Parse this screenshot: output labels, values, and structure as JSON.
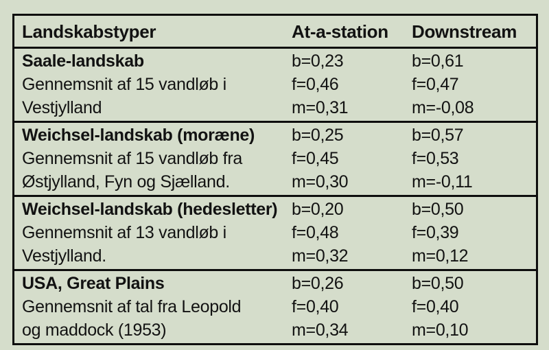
{
  "page": {
    "background_color": "#d5ddcb",
    "border_color": "#0d0d0d",
    "text_color": "#121212"
  },
  "table": {
    "headers": [
      "Landskabstyper",
      "At-a-station",
      "Downstream"
    ],
    "groups": [
      {
        "rows": [
          [
            "Saale-landskab",
            "b=0,23",
            "b=0,61"
          ],
          [
            "Gennemsnit af 15 vandløb i",
            "f=0,46",
            "f=0,47"
          ],
          [
            "Vestjylland",
            "m=0,31",
            "m=-0,08"
          ]
        ]
      },
      {
        "rows": [
          [
            "Weichsel-landskab (moræne)",
            "b=0,25",
            "b=0,57"
          ],
          [
            "Gennemsnit af 15 vandløb fra",
            "f=0,45",
            "f=0,53"
          ],
          [
            "Østjylland, Fyn og Sjælland.",
            "m=0,30",
            "m=-0,11"
          ]
        ]
      },
      {
        "rows": [
          [
            "Weichsel-landskab (hedesletter)",
            "b=0,20",
            "b=0,50"
          ],
          [
            "Gennemsnit af 13 vandløb i",
            "f=0,48",
            "f=0,39"
          ],
          [
            "Vestjylland.",
            "m=0,32",
            "m=0,12"
          ]
        ]
      },
      {
        "rows": [
          [
            "USA, Great Plains",
            "b=0,26",
            "b=0,50"
          ],
          [
            "Gennemsnit af tal fra Leopold",
            "f=0,40",
            "f=0,40"
          ],
          [
            "og maddock (1953)",
            "m=0,34",
            "m=0,10"
          ]
        ]
      }
    ]
  },
  "chart_data": {
    "type": "table",
    "title": "Landskabstyper",
    "columns": [
      "Landskabstyper",
      "At-a-station",
      "Downstream"
    ],
    "rows": [
      [
        "Saale-landskab",
        "b=0,23",
        "b=0,61"
      ],
      [
        "Gennemsnit af 15 vandløb i",
        "f=0,46",
        "f=0,47"
      ],
      [
        "Vestjylland",
        "m=0,31",
        "m=-0,08"
      ],
      [
        "Weichsel-landskab (moræne)",
        "b=0,25",
        "b=0,57"
      ],
      [
        "Gennemsnit af 15 vandløb fra",
        "f=0,45",
        "f=0,53"
      ],
      [
        "Østjylland, Fyn og Sjælland.",
        "m=0,30",
        "m=-0,11"
      ],
      [
        "Weichsel-landskab (hedesletter)",
        "b=0,20",
        "b=0,50"
      ],
      [
        "Gennemsnit af 13 vandløb i",
        "f=0,48",
        "f=0,39"
      ],
      [
        "Vestjylland.",
        "m=0,32",
        "m=0,12"
      ],
      [
        "USA, Great Plains",
        "b=0,26",
        "b=0,50"
      ],
      [
        "Gennemsnit af tal fra Leopold",
        "f=0,40",
        "f=0,40"
      ],
      [
        "og maddock (1953)",
        "m=0,34",
        "m=0,10"
      ]
    ]
  }
}
